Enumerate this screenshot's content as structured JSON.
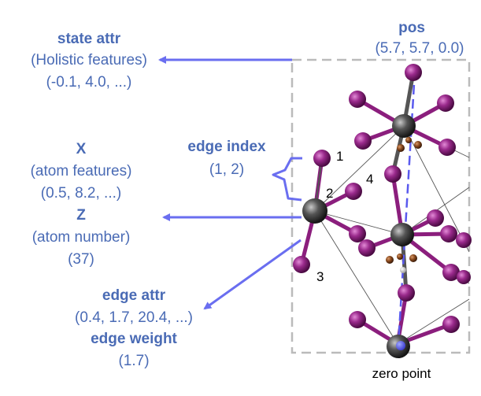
{
  "colors": {
    "label": "#4a6bb5",
    "arrow": "#6a6ef0",
    "atom_purple": "#8b1e7d",
    "atom_gray": "#4a4a4a",
    "atom_brown": "#8a4a1e",
    "frame": "#bbbbbb"
  },
  "labels": {
    "state_attr_title": "state attr",
    "state_attr_desc": "(Holistic features)",
    "state_attr_vals": "(-0.1, 4.0, ...)",
    "x_title": "X",
    "x_desc": "(atom features)",
    "x_vals": "(0.5, 8.2, ...)",
    "z_title": "Z",
    "z_desc": "(atom number)",
    "z_vals": "(37)",
    "edge_index_title": "edge index",
    "edge_index_vals": "(1, 2)",
    "edge_attr_title": "edge attr",
    "edge_attr_vals": "(0.4, 1.7, 20.4, ...)",
    "edge_weight_title": "edge weight",
    "edge_weight_vals": "(1.7)",
    "pos_title": "pos",
    "pos_vals": "(5.7, 5.7, 0.0)",
    "zero_point": "zero point"
  },
  "atom_numbers": [
    "1",
    "2",
    "3",
    "4"
  ]
}
